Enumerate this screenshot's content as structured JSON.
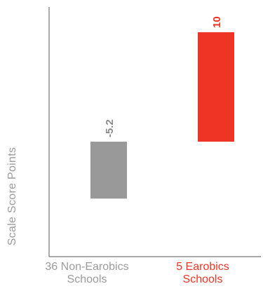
{
  "chart_data": {
    "type": "bar",
    "categories": [
      [
        "36 Non-Earobics",
        "Schools"
      ],
      [
        "5 Earobics",
        "Schools"
      ]
    ],
    "values": [
      -5.2,
      10
    ],
    "data_labels": [
      "-5.2",
      "10"
    ],
    "colors": [
      "#999999",
      "#ee3424"
    ],
    "category_label_colors": [
      "#9b9b9b",
      "#ee3424"
    ],
    "ylabel": "Scale Score Points",
    "xlabel": "",
    "title": "",
    "ylim": [
      -10.5,
      12.3
    ],
    "grid": false,
    "legend": "none"
  }
}
